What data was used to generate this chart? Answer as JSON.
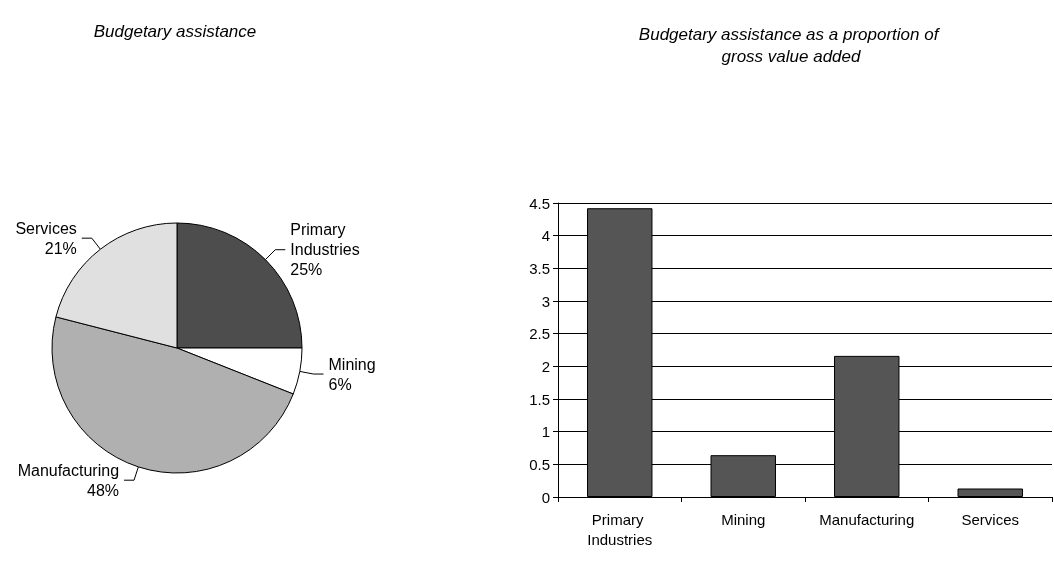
{
  "chart_data": [
    {
      "type": "pie",
      "title": "Budgetary assistance",
      "categories": [
        "Primary Industries",
        "Mining",
        "Manufacturing",
        "Services"
      ],
      "values": [
        25,
        6,
        48,
        21
      ],
      "value_labels": [
        "25%",
        "6%",
        "48%",
        "21%"
      ],
      "colors": [
        "#4d4d4d",
        "#ffffff",
        "#b0b0b0",
        "#e0e0e0"
      ]
    },
    {
      "type": "bar",
      "title": "Budgetary assistance as a proportion of gross value added",
      "categories": [
        "Primary Industries",
        "Mining",
        "Manufacturing",
        "Services"
      ],
      "values": [
        4.42,
        0.64,
        2.16,
        0.13
      ],
      "color": "#555555",
      "ylim": [
        0,
        4.5
      ],
      "yticks": [
        0,
        0.5,
        1,
        1.5,
        2,
        2.5,
        3,
        3.5,
        4,
        4.5
      ],
      "grid": "y"
    }
  ]
}
